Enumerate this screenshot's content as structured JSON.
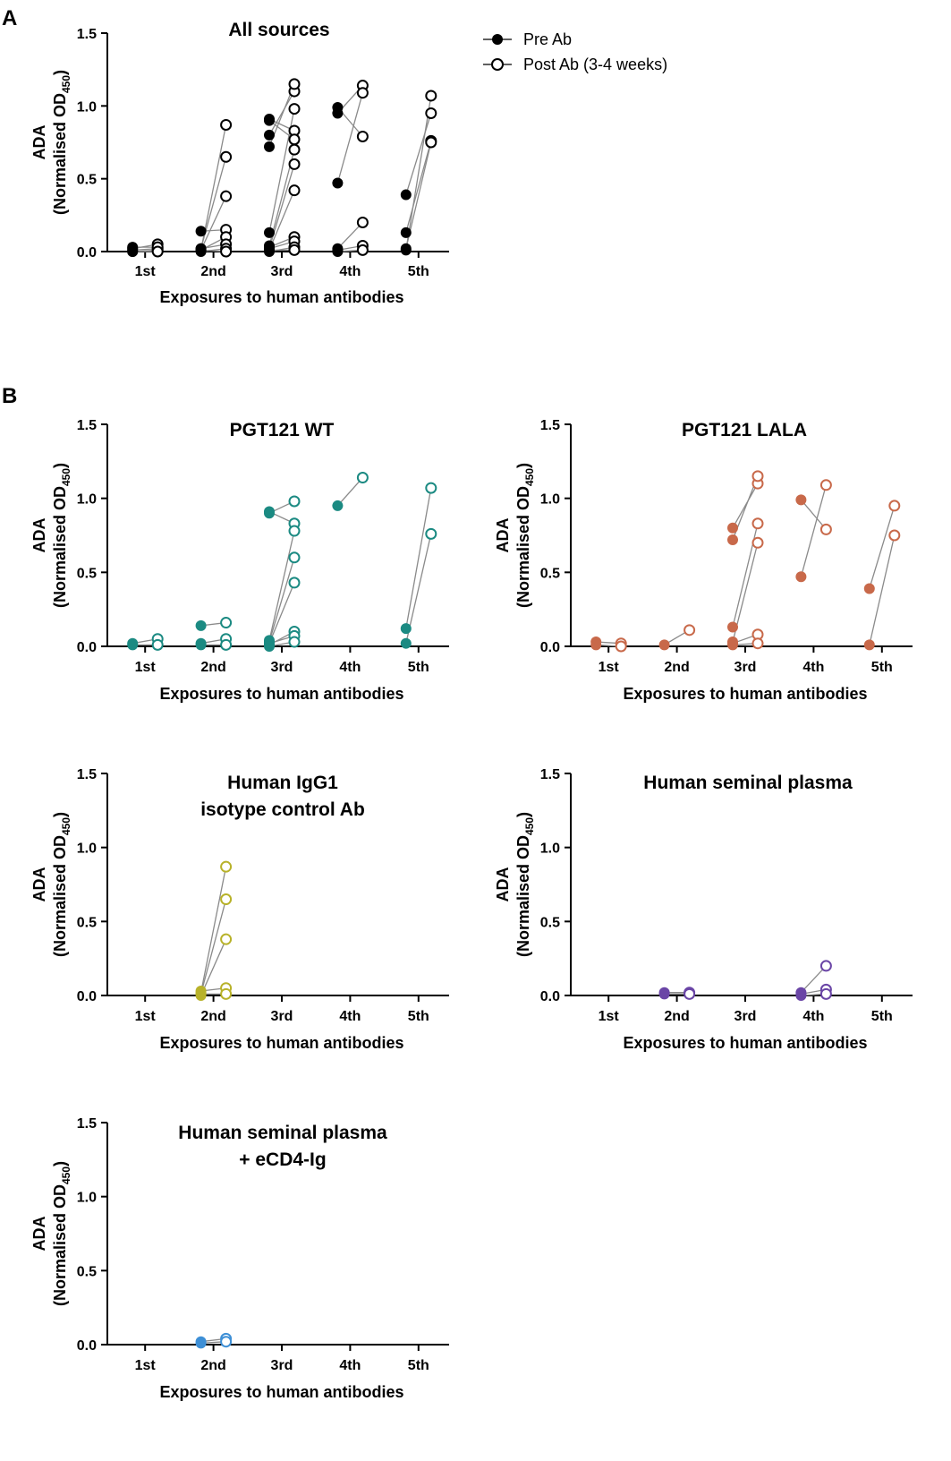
{
  "panel_labels": [
    "A",
    "B"
  ],
  "legend": {
    "pre": "Pre Ab",
    "post": "Post Ab (3-4 weeks)"
  },
  "chart_data": [
    {
      "type": "scatter",
      "title": "All sources",
      "title_lines": [
        "All sources"
      ],
      "color": "#000000",
      "categories": [
        "1st",
        "2nd",
        "3rd",
        "4th",
        "5th"
      ],
      "xlabel": "Exposures to human antibodies",
      "ylabel": "ADA",
      "ylabel2": "Normalised OD",
      "ylabel_sub": "450",
      "ylim": [
        0,
        1.5
      ],
      "yticks": [
        "0.0",
        "0.5",
        "1.0",
        "1.5"
      ],
      "pairs": [
        {
          "cat": 1,
          "pre": 0.02,
          "post": 0.05
        },
        {
          "cat": 1,
          "pre": 0.0,
          "post": 0.01
        },
        {
          "cat": 1,
          "pre": 0.01,
          "post": 0.02
        },
        {
          "cat": 1,
          "pre": 0.03,
          "post": 0.03
        },
        {
          "cat": 1,
          "pre": 0.0,
          "post": 0.0
        },
        {
          "cat": 2,
          "pre": 0.01,
          "post": 0.87
        },
        {
          "cat": 2,
          "pre": 0.02,
          "post": 0.65
        },
        {
          "cat": 2,
          "pre": 0.01,
          "post": 0.38
        },
        {
          "cat": 2,
          "pre": 0.14,
          "post": 0.15
        },
        {
          "cat": 2,
          "pre": 0.01,
          "post": 0.1
        },
        {
          "cat": 2,
          "pre": 0.02,
          "post": 0.05
        },
        {
          "cat": 2,
          "pre": 0.0,
          "post": 0.02
        },
        {
          "cat": 2,
          "pre": 0.01,
          "post": 0.0
        },
        {
          "cat": 3,
          "pre": 0.91,
          "post": 0.83
        },
        {
          "cat": 3,
          "pre": 0.9,
          "post": 0.77
        },
        {
          "cat": 3,
          "pre": 0.8,
          "post": 1.1
        },
        {
          "cat": 3,
          "pre": 0.72,
          "post": 1.15
        },
        {
          "cat": 3,
          "pre": 0.13,
          "post": 0.98
        },
        {
          "cat": 3,
          "pre": 0.04,
          "post": 0.7
        },
        {
          "cat": 3,
          "pre": 0.02,
          "post": 0.6
        },
        {
          "cat": 3,
          "pre": 0.01,
          "post": 0.42
        },
        {
          "cat": 3,
          "pre": 0.03,
          "post": 0.1
        },
        {
          "cat": 3,
          "pre": 0.02,
          "post": 0.07
        },
        {
          "cat": 3,
          "pre": 0.0,
          "post": 0.03
        },
        {
          "cat": 3,
          "pre": 0.01,
          "post": 0.01
        },
        {
          "cat": 4,
          "pre": 0.99,
          "post": 0.79
        },
        {
          "cat": 4,
          "pre": 0.95,
          "post": 1.14
        },
        {
          "cat": 4,
          "pre": 0.47,
          "post": 1.09
        },
        {
          "cat": 4,
          "pre": 0.02,
          "post": 0.2
        },
        {
          "cat": 4,
          "pre": 0.01,
          "post": 0.04
        },
        {
          "cat": 4,
          "pre": 0.0,
          "post": 0.01
        },
        {
          "cat": 5,
          "pre": 0.39,
          "post": 0.95
        },
        {
          "cat": 5,
          "pre": 0.13,
          "post": 0.76
        },
        {
          "cat": 5,
          "pre": 0.01,
          "post": 1.07
        },
        {
          "cat": 5,
          "pre": 0.02,
          "post": 0.75
        }
      ]
    },
    {
      "type": "scatter",
      "title": "PGT121 WT",
      "title_lines": [
        "PGT121 WT"
      ],
      "color": "#1b8a82",
      "categories": [
        "1st",
        "2nd",
        "3rd",
        "4th",
        "5th"
      ],
      "xlabel": "Exposures to human antibodies",
      "ylabel": "ADA",
      "ylabel2": "Normalised OD",
      "ylabel_sub": "450",
      "ylim": [
        0,
        1.5
      ],
      "yticks": [
        "0.0",
        "0.5",
        "1.0",
        "1.5"
      ],
      "pairs": [
        {
          "cat": 1,
          "pre": 0.02,
          "post": 0.05
        },
        {
          "cat": 1,
          "pre": 0.01,
          "post": 0.01
        },
        {
          "cat": 2,
          "pre": 0.14,
          "post": 0.16
        },
        {
          "cat": 2,
          "pre": 0.02,
          "post": 0.05
        },
        {
          "cat": 2,
          "pre": 0.01,
          "post": 0.01
        },
        {
          "cat": 3,
          "pre": 0.91,
          "post": 0.83
        },
        {
          "cat": 3,
          "pre": 0.9,
          "post": 0.98
        },
        {
          "cat": 3,
          "pre": 0.04,
          "post": 0.78
        },
        {
          "cat": 3,
          "pre": 0.03,
          "post": 0.6
        },
        {
          "cat": 3,
          "pre": 0.02,
          "post": 0.43
        },
        {
          "cat": 3,
          "pre": 0.01,
          "post": 0.1
        },
        {
          "cat": 3,
          "pre": 0.02,
          "post": 0.07
        },
        {
          "cat": 3,
          "pre": 0.0,
          "post": 0.03
        },
        {
          "cat": 4,
          "pre": 0.95,
          "post": 1.14
        },
        {
          "cat": 5,
          "pre": 0.12,
          "post": 1.07
        },
        {
          "cat": 5,
          "pre": 0.02,
          "post": 0.76
        }
      ]
    },
    {
      "type": "scatter",
      "title": "PGT121 LALA",
      "title_lines": [
        "PGT121 LALA"
      ],
      "color": "#c8694a",
      "categories": [
        "1st",
        "2nd",
        "3rd",
        "4th",
        "5th"
      ],
      "xlabel": "Exposures to human antibodies",
      "ylabel": "ADA",
      "ylabel2": "Normalised OD",
      "ylabel_sub": "450",
      "ylim": [
        0,
        1.5
      ],
      "yticks": [
        "0.0",
        "0.5",
        "1.0",
        "1.5"
      ],
      "pairs": [
        {
          "cat": 1,
          "pre": 0.03,
          "post": 0.02
        },
        {
          "cat": 1,
          "pre": 0.01,
          "post": 0.0
        },
        {
          "cat": 2,
          "pre": 0.01,
          "post": 0.11
        },
        {
          "cat": 3,
          "pre": 0.8,
          "post": 1.1
        },
        {
          "cat": 3,
          "pre": 0.72,
          "post": 1.15
        },
        {
          "cat": 3,
          "pre": 0.13,
          "post": 0.83
        },
        {
          "cat": 3,
          "pre": 0.03,
          "post": 0.7
        },
        {
          "cat": 3,
          "pre": 0.02,
          "post": 0.08
        },
        {
          "cat": 3,
          "pre": 0.01,
          "post": 0.02
        },
        {
          "cat": 4,
          "pre": 0.99,
          "post": 0.79
        },
        {
          "cat": 4,
          "pre": 0.47,
          "post": 1.09
        },
        {
          "cat": 5,
          "pre": 0.39,
          "post": 0.95
        },
        {
          "cat": 5,
          "pre": 0.01,
          "post": 0.75
        }
      ]
    },
    {
      "type": "scatter",
      "title": "Human IgG1 isotype control Ab",
      "title_lines": [
        "Human IgG1",
        "isotype control Ab"
      ],
      "color": "#b8b22a",
      "categories": [
        "1st",
        "2nd",
        "3rd",
        "4th",
        "5th"
      ],
      "xlabel": "Exposures to human antibodies",
      "ylabel": "ADA",
      "ylabel2": "Normalised OD",
      "ylabel_sub": "450",
      "ylim": [
        0,
        1.5
      ],
      "yticks": [
        "0.0",
        "0.5",
        "1.0",
        "1.5"
      ],
      "pairs": [
        {
          "cat": 2,
          "pre": 0.02,
          "post": 0.87
        },
        {
          "cat": 2,
          "pre": 0.01,
          "post": 0.65
        },
        {
          "cat": 2,
          "pre": 0.0,
          "post": 0.38
        },
        {
          "cat": 2,
          "pre": 0.03,
          "post": 0.05
        },
        {
          "cat": 2,
          "pre": 0.01,
          "post": 0.01
        }
      ]
    },
    {
      "type": "scatter",
      "title": "Human seminal plasma",
      "title_lines": [
        "Human seminal plasma"
      ],
      "color": "#6a45a6",
      "categories": [
        "1st",
        "2nd",
        "3rd",
        "4th",
        "5th"
      ],
      "xlabel": "Exposures to human antibodies",
      "ylabel": "ADA",
      "ylabel2": "Normalised OD",
      "ylabel_sub": "450",
      "ylim": [
        0,
        1.5
      ],
      "yticks": [
        "0.0",
        "0.5",
        "1.0",
        "1.5"
      ],
      "pairs": [
        {
          "cat": 2,
          "pre": 0.02,
          "post": 0.02
        },
        {
          "cat": 2,
          "pre": 0.01,
          "post": 0.01
        },
        {
          "cat": 4,
          "pre": 0.02,
          "post": 0.2
        },
        {
          "cat": 4,
          "pre": 0.01,
          "post": 0.04
        },
        {
          "cat": 4,
          "pre": 0.0,
          "post": 0.01
        }
      ]
    },
    {
      "type": "scatter",
      "title": "Human seminal plasma + eCD4-Ig",
      "title_lines": [
        "Human seminal plasma",
        "+ eCD4-Ig"
      ],
      "color": "#3d8fd6",
      "categories": [
        "1st",
        "2nd",
        "3rd",
        "4th",
        "5th"
      ],
      "xlabel": "Exposures to human antibodies",
      "ylabel": "ADA",
      "ylabel2": "Normalised OD",
      "ylabel_sub": "450",
      "ylim": [
        0,
        1.5
      ],
      "yticks": [
        "0.0",
        "0.5",
        "1.0",
        "1.5"
      ],
      "pairs": [
        {
          "cat": 2,
          "pre": 0.02,
          "post": 0.04
        },
        {
          "cat": 2,
          "pre": 0.01,
          "post": 0.02
        }
      ]
    }
  ]
}
